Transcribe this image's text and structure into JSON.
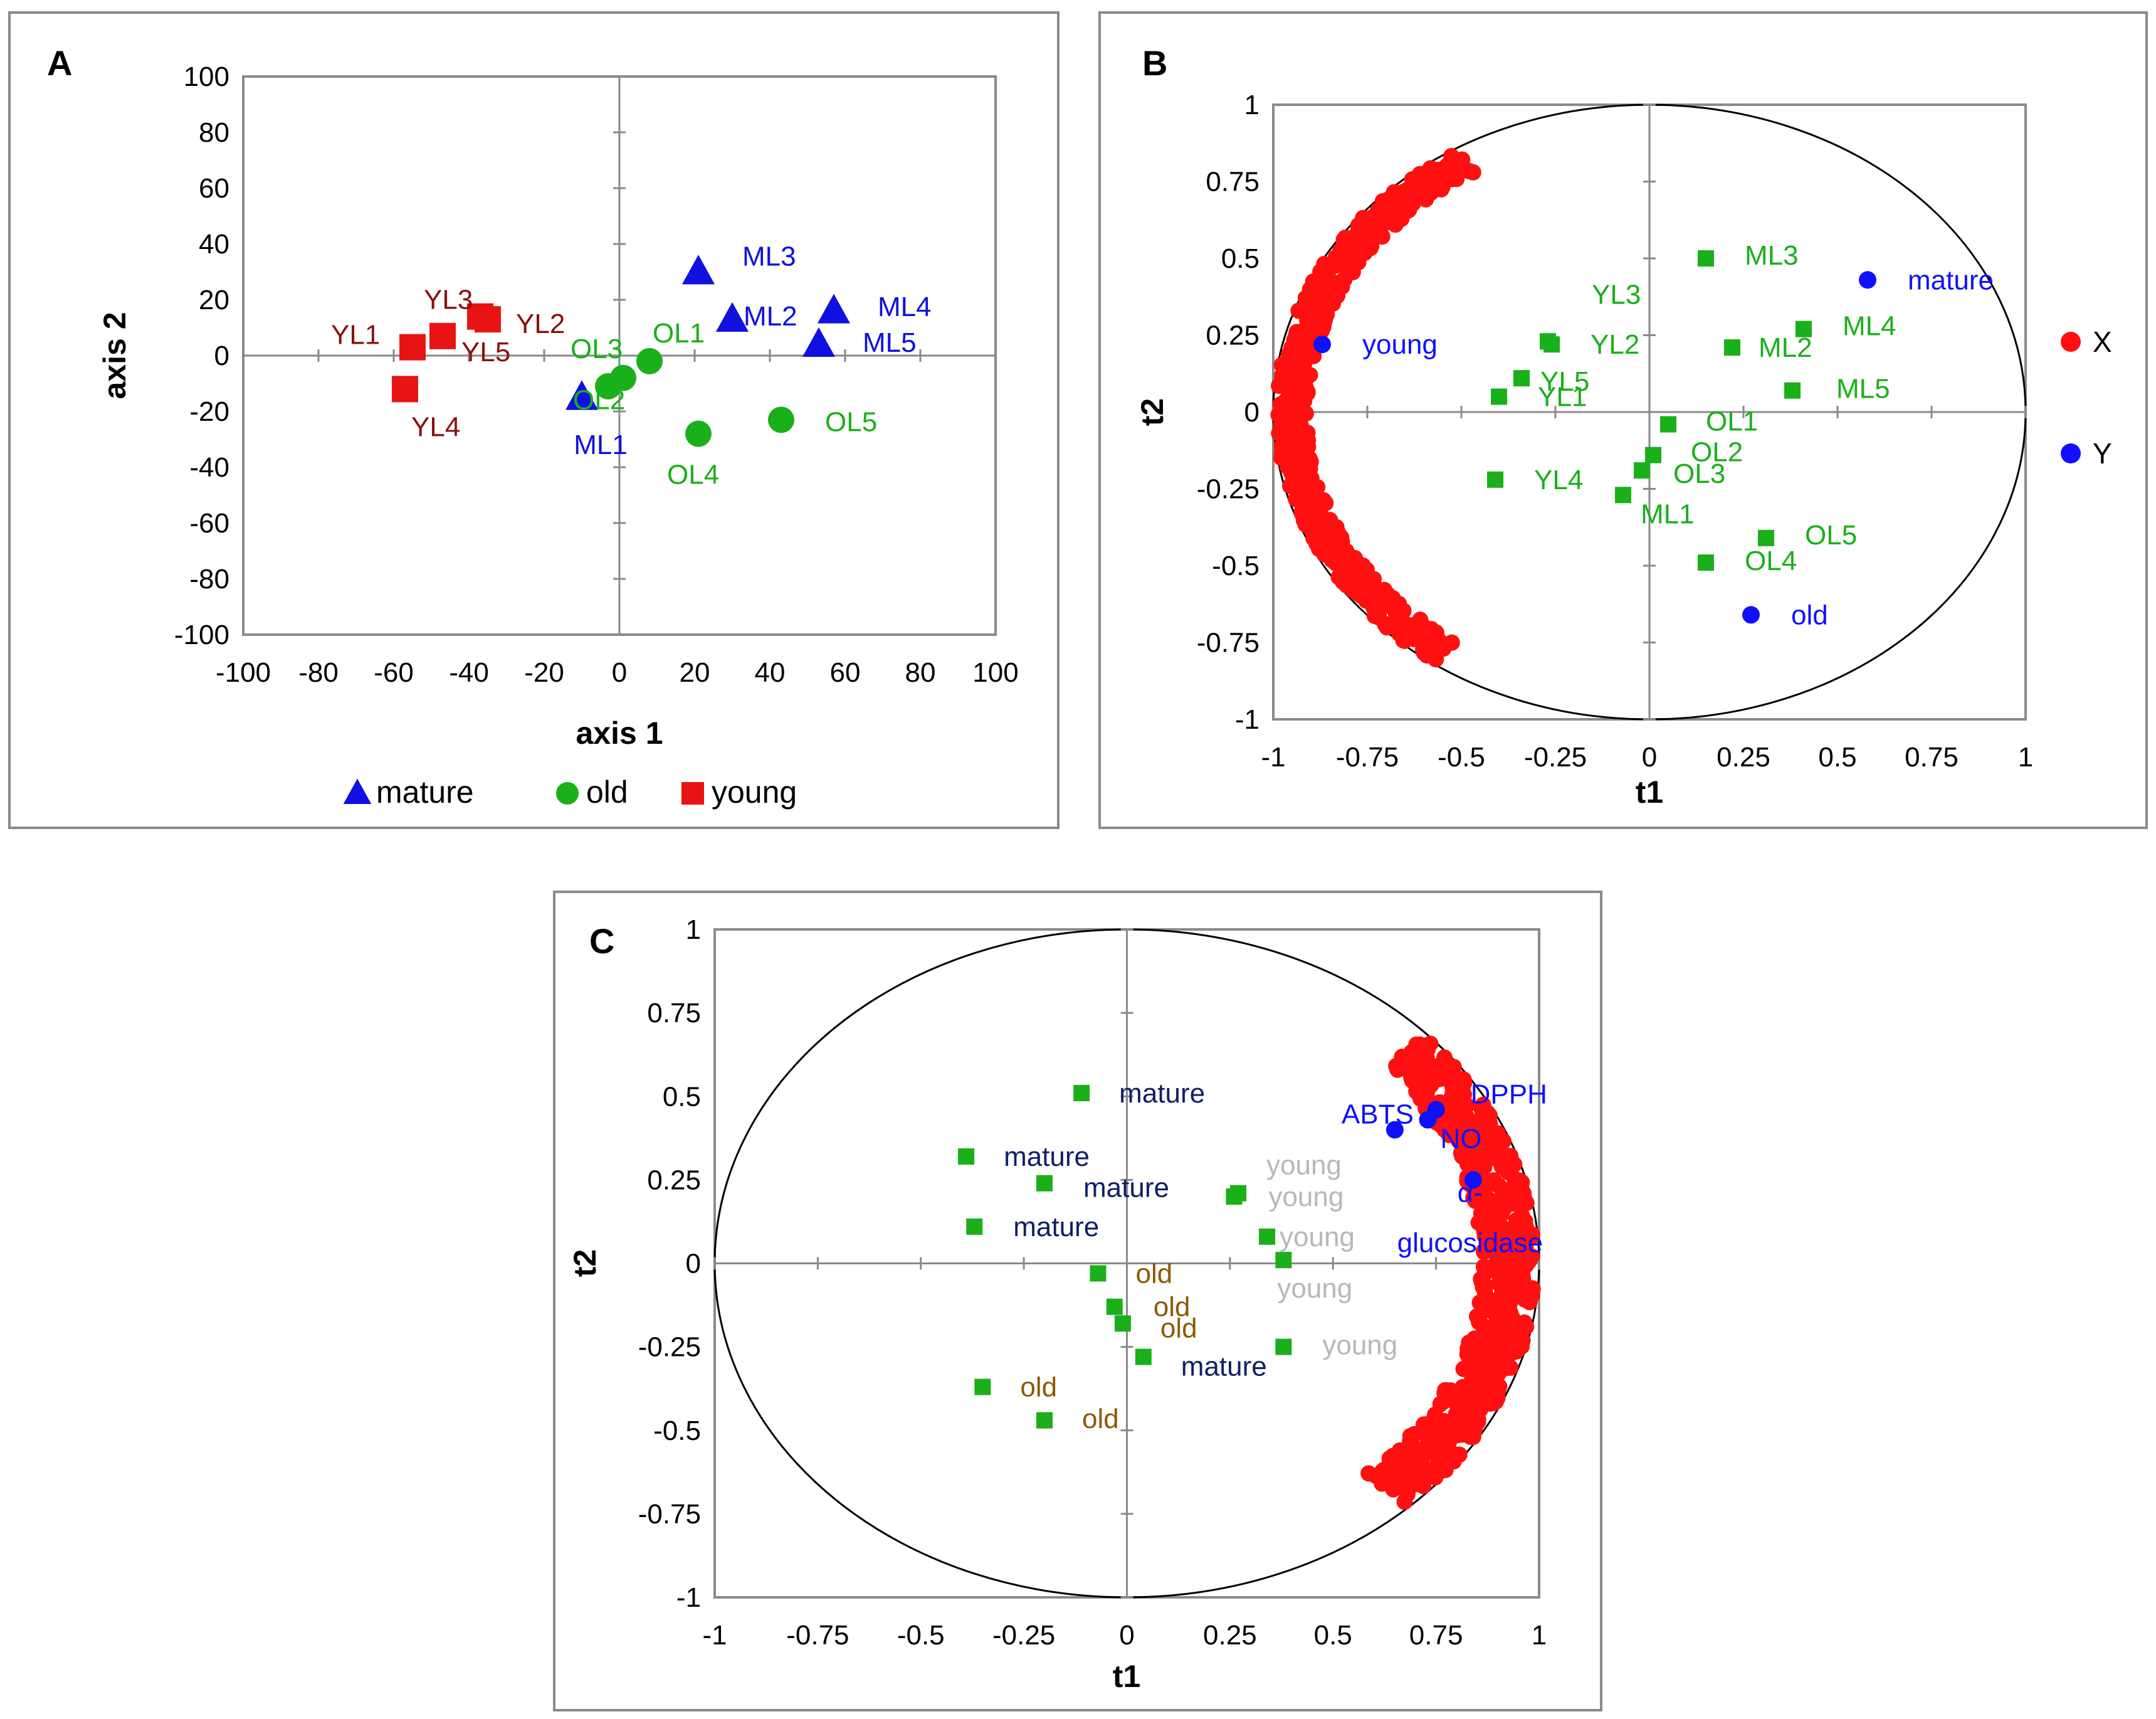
{
  "panels": [
    {
      "panel_label": "A",
      "chart_data": {
        "type": "scatter",
        "title": "",
        "xlabel": "axis 1",
        "ylabel": "axis 2",
        "xlim": [
          -100,
          100
        ],
        "ylim": [
          -100,
          100
        ],
        "xticks": [
          -100,
          -80,
          -60,
          -40,
          -20,
          0,
          20,
          40,
          60,
          80,
          100
        ],
        "yticks": [
          -100,
          -80,
          -60,
          -40,
          -20,
          0,
          20,
          40,
          60,
          80,
          100
        ],
        "grid": false,
        "legend_position": "bottom",
        "series": [
          {
            "name": "mature",
            "marker": "triangle",
            "color": "#1010e0",
            "label_color": "#1010e0",
            "points": [
              {
                "label": "ML1",
                "x": -10,
                "y": -15
              },
              {
                "label": "ML2",
                "x": 30,
                "y": 13
              },
              {
                "label": "ML3",
                "x": 21,
                "y": 30
              },
              {
                "label": "ML4",
                "x": 57,
                "y": 16
              },
              {
                "label": "ML5",
                "x": 53,
                "y": 4
              }
            ]
          },
          {
            "name": "old",
            "marker": "circle",
            "color": "#1ab01a",
            "label_color": "#1ab01a",
            "points": [
              {
                "label": "OL1",
                "x": 8,
                "y": -2
              },
              {
                "label": "OL2",
                "x": 1,
                "y": -8
              },
              {
                "label": "OL3",
                "x": -3,
                "y": -11
              },
              {
                "label": "OL4",
                "x": 21,
                "y": -28
              },
              {
                "label": "OL5",
                "x": 43,
                "y": -23
              }
            ]
          },
          {
            "name": "young",
            "marker": "square",
            "color": "#e81414",
            "label_color": "#8b1010",
            "points": [
              {
                "label": "YL1",
                "x": -55,
                "y": 3
              },
              {
                "label": "YL2",
                "x": -35,
                "y": 13
              },
              {
                "label": "YL3",
                "x": -37,
                "y": 14
              },
              {
                "label": "YL4",
                "x": -57,
                "y": -12
              },
              {
                "label": "YL5",
                "x": -47,
                "y": 7
              }
            ]
          }
        ]
      }
    },
    {
      "panel_label": "B",
      "chart_data": {
        "type": "scatter",
        "title": "",
        "xlabel": "t1",
        "ylabel": "t2",
        "xlim": [
          -1,
          1
        ],
        "ylim": [
          -1,
          1
        ],
        "xticks": [
          -1,
          -0.75,
          -0.5,
          -0.25,
          0,
          0.25,
          0.5,
          0.75,
          1
        ],
        "yticks": [
          -1,
          -0.75,
          -0.5,
          -0.25,
          0,
          0.25,
          0.5,
          0.75,
          1
        ],
        "grid": false,
        "correlation_circle_radius": 1,
        "legend_position": "right",
        "legend_entries": [
          {
            "name": "X",
            "color": "#ff1010"
          },
          {
            "name": "Y",
            "color": "#1010ff"
          }
        ],
        "x_variables_arc": {
          "color": "#ff1010",
          "radius_range": [
            0.91,
            0.99
          ],
          "angle_range_deg": [
            121,
            235
          ]
        },
        "series": [
          {
            "name": "observations",
            "marker": "square",
            "color": "#1ab01a",
            "label_color": "#1ab01a",
            "points": [
              {
                "label": "ML1",
                "x": -0.07,
                "y": -0.27
              },
              {
                "label": "ML2",
                "x": 0.22,
                "y": 0.21
              },
              {
                "label": "ML3",
                "x": 0.15,
                "y": 0.5
              },
              {
                "label": "ML4",
                "x": 0.41,
                "y": 0.27
              },
              {
                "label": "ML5",
                "x": 0.38,
                "y": 0.07
              },
              {
                "label": "OL1",
                "x": 0.05,
                "y": -0.04
              },
              {
                "label": "OL2",
                "x": 0.01,
                "y": -0.14
              },
              {
                "label": "OL3",
                "x": -0.02,
                "y": -0.19
              },
              {
                "label": "OL4",
                "x": 0.15,
                "y": -0.49
              },
              {
                "label": "OL5",
                "x": 0.31,
                "y": -0.41
              },
              {
                "label": "YL1",
                "x": -0.4,
                "y": 0.05
              },
              {
                "label": "YL2",
                "x": -0.26,
                "y": 0.22
              },
              {
                "label": "YL3",
                "x": -0.27,
                "y": 0.23
              },
              {
                "label": "YL4",
                "x": -0.41,
                "y": -0.22
              },
              {
                "label": "YL5",
                "x": -0.34,
                "y": 0.11
              }
            ]
          },
          {
            "name": "Y",
            "marker": "circle",
            "color": "#1010ff",
            "label_color": "#1010ff",
            "points": [
              {
                "label": "young",
                "x": -0.87,
                "y": 0.22
              },
              {
                "label": "mature",
                "x": 0.58,
                "y": 0.43
              },
              {
                "label": "old",
                "x": 0.27,
                "y": -0.66
              }
            ]
          }
        ]
      }
    },
    {
      "panel_label": "C",
      "chart_data": {
        "type": "scatter",
        "title": "",
        "xlabel": "t1",
        "ylabel": "t2",
        "xlim": [
          -1,
          1
        ],
        "ylim": [
          -1,
          1
        ],
        "xticks": [
          -1,
          -0.75,
          -0.5,
          -0.25,
          0,
          0.25,
          0.5,
          0.75,
          1
        ],
        "yticks": [
          -1,
          -0.75,
          -0.5,
          -0.25,
          0,
          0.25,
          0.5,
          0.75,
          1
        ],
        "grid": false,
        "correlation_circle_radius": 1,
        "x_variables_arc": {
          "color": "#ff1010",
          "radius_range": [
            0.86,
            0.99
          ],
          "angle_range_deg": [
            -47,
            43
          ]
        },
        "series": [
          {
            "name": "observations",
            "marker": "square",
            "color": "#1ab01a",
            "points": [
              {
                "label": "mature",
                "x": -0.11,
                "y": 0.51,
                "label_color": "#0f1f66"
              },
              {
                "label": "mature",
                "x": -0.39,
                "y": 0.32,
                "label_color": "#0f1f66"
              },
              {
                "label": "mature",
                "x": -0.2,
                "y": 0.24,
                "label_color": "#0f1f66"
              },
              {
                "label": "mature",
                "x": -0.37,
                "y": 0.11,
                "label_color": "#0f1f66"
              },
              {
                "label": "mature",
                "x": 0.04,
                "y": -0.28,
                "label_color": "#0f1f66"
              },
              {
                "label": "young",
                "x": 0.27,
                "y": 0.21,
                "label_color": "#b8b8b8"
              },
              {
                "label": "young",
                "x": 0.26,
                "y": 0.2,
                "label_color": "#b8b8b8"
              },
              {
                "label": "young",
                "x": 0.34,
                "y": 0.08,
                "label_color": "#b8b8b8"
              },
              {
                "label": "young",
                "x": 0.38,
                "y": 0.01,
                "label_color": "#b8b8b8"
              },
              {
                "label": "young",
                "x": 0.38,
                "y": -0.25,
                "label_color": "#b8b8b8"
              },
              {
                "label": "old",
                "x": -0.07,
                "y": -0.03,
                "label_color": "#8b5a00"
              },
              {
                "label": "old",
                "x": -0.03,
                "y": -0.13,
                "label_color": "#8b5a00"
              },
              {
                "label": "old",
                "x": -0.01,
                "y": -0.18,
                "label_color": "#8b5a00"
              },
              {
                "label": "old",
                "x": -0.35,
                "y": -0.37,
                "label_color": "#8b5a00"
              },
              {
                "label": "old",
                "x": -0.2,
                "y": -0.47,
                "label_color": "#8b5a00"
              }
            ]
          },
          {
            "name": "Y",
            "marker": "circle",
            "color": "#1010ff",
            "label_color": "#1010ff",
            "points": [
              {
                "label": "ABTS",
                "x": 0.65,
                "y": 0.4
              },
              {
                "label": "DPPH",
                "x": 0.75,
                "y": 0.46
              },
              {
                "label": "NO",
                "x": 0.73,
                "y": 0.43
              },
              {
                "label": "α-",
                "label2": "glucosidase",
                "x": 0.84,
                "y": 0.25
              }
            ]
          }
        ]
      }
    }
  ]
}
